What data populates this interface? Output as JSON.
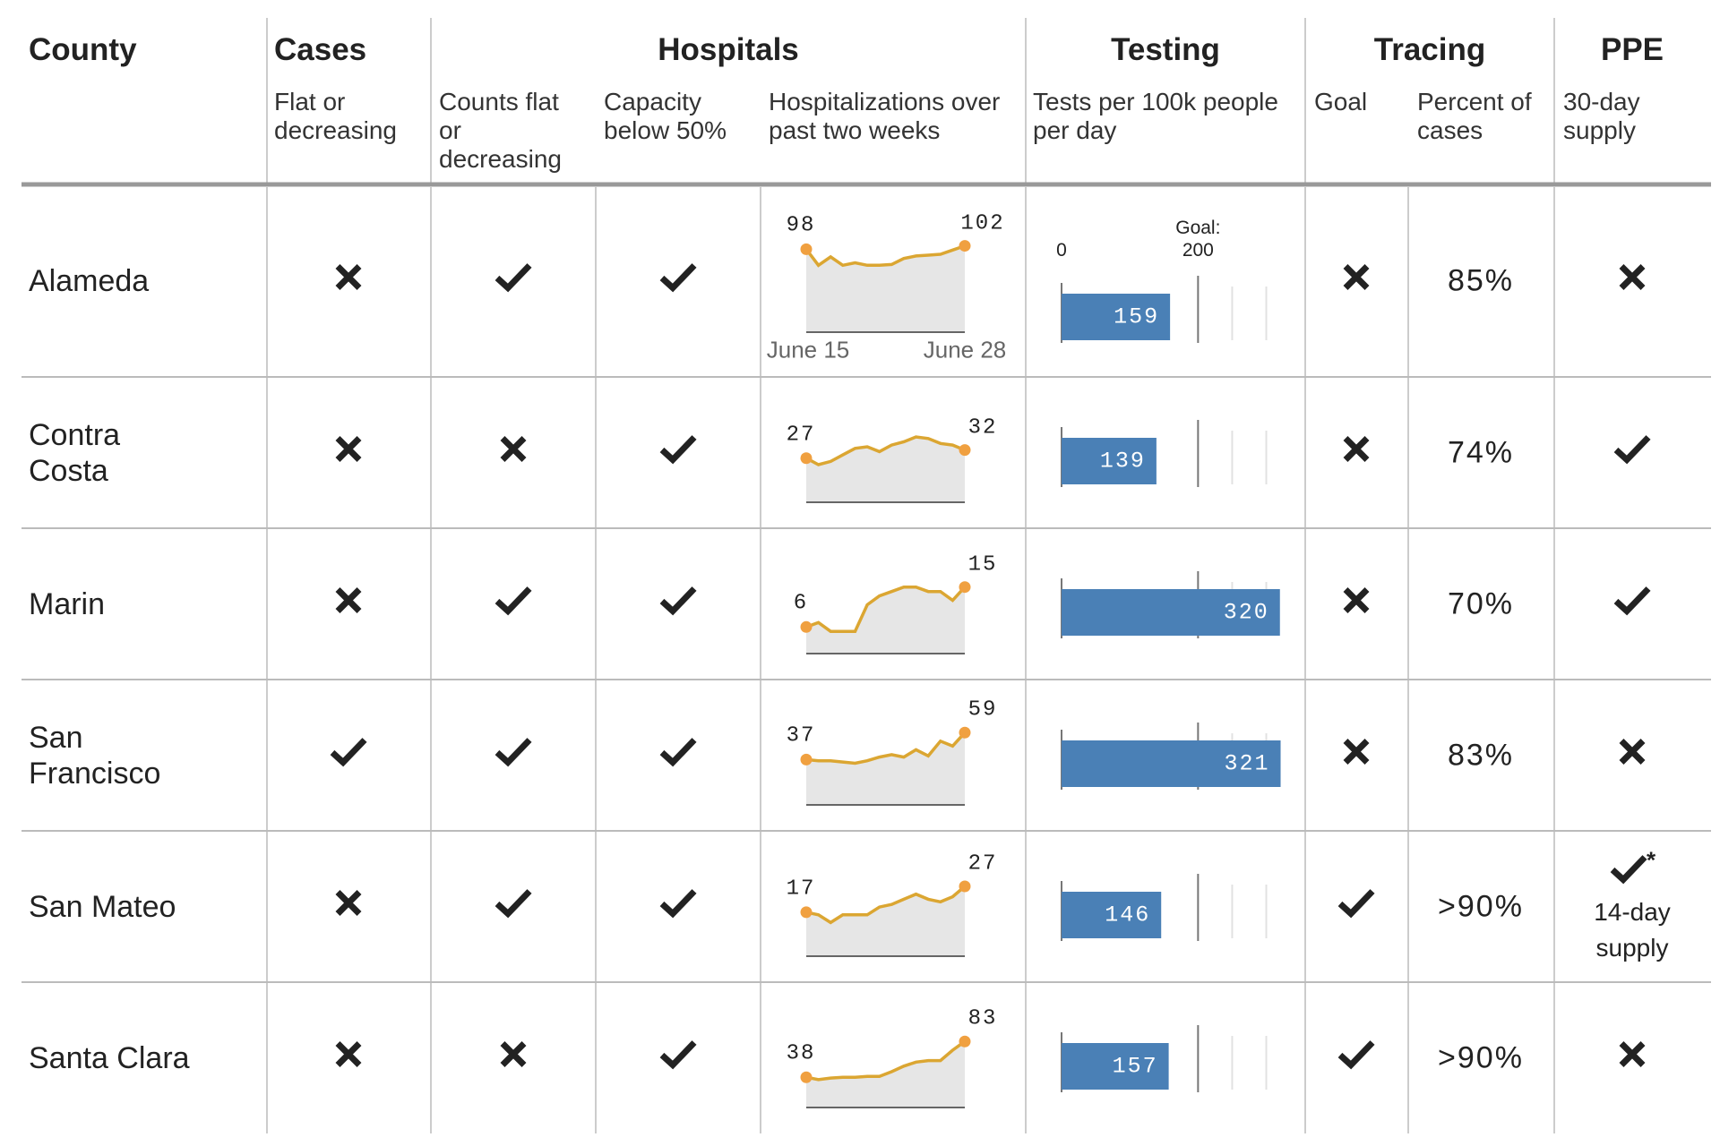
{
  "header": {
    "groups": [
      "County",
      "Cases",
      "Hospitals",
      "Testing",
      "Tracing",
      "PPE"
    ],
    "subheads": [
      "Flat or decreasing",
      "Counts flat or decreasing",
      "Capacity below 50%",
      "Hospitalizations over past two weeks",
      "Tests per 100k people per day",
      "Goal",
      "Percent of cases",
      "30-day supply"
    ]
  },
  "sparkline_dates": [
    "June 15",
    "June 28"
  ],
  "testing_axis": {
    "xlim": [
      0,
      340
    ],
    "xticks": [
      0,
      200
    ],
    "goal_label": "Goal:",
    "minor_grid": [
      250,
      300
    ]
  },
  "rows": [
    {
      "county": "Alameda",
      "cases_flat": false,
      "hosp_counts_flat": true,
      "capacity_below_50": true,
      "hospitalizations": {
        "values": [
          98,
          79,
          89,
          79,
          82,
          79,
          79,
          80,
          87,
          90,
          91,
          92,
          97,
          102
        ],
        "ylim": [
          0,
          110
        ]
      },
      "tests": 159,
      "tracing_goal": false,
      "tracing_percent": "85%",
      "ppe_supply": false
    },
    {
      "county": "Contra Costa",
      "cases_flat": false,
      "hosp_counts_flat": false,
      "capacity_below_50": true,
      "hospitalizations": {
        "values": [
          27,
          23,
          25,
          29,
          33,
          34,
          31,
          35,
          37,
          40,
          39,
          36,
          35,
          32
        ],
        "ylim": [
          0,
          57
        ]
      },
      "tests": 139,
      "tracing_goal": false,
      "tracing_percent": "74%",
      "ppe_supply": true
    },
    {
      "county": "Marin",
      "cases_flat": false,
      "hosp_counts_flat": true,
      "capacity_below_50": true,
      "hospitalizations": {
        "values": [
          6,
          7,
          5,
          5,
          5,
          11,
          13,
          14,
          15,
          15,
          14,
          14,
          12,
          15
        ],
        "ylim": [
          0,
          21
        ]
      },
      "tests": 320,
      "tracing_goal": false,
      "tracing_percent": "70%",
      "ppe_supply": true
    },
    {
      "county": "San Francisco",
      "cases_flat": true,
      "hosp_counts_flat": true,
      "capacity_below_50": true,
      "hospitalizations": {
        "values": [
          37,
          36,
          36,
          35,
          34,
          36,
          39,
          41,
          39,
          45,
          40,
          52,
          48,
          59
        ],
        "ylim": [
          0,
          76
        ]
      },
      "tests": 321,
      "tracing_goal": false,
      "tracing_percent": "83%",
      "ppe_supply": false
    },
    {
      "county": "San Mateo",
      "cases_flat": false,
      "hosp_counts_flat": true,
      "capacity_below_50": true,
      "hospitalizations": {
        "values": [
          17,
          16,
          13,
          16,
          16,
          16,
          19,
          20,
          22,
          24,
          22,
          21,
          23,
          27
        ],
        "ylim": [
          0,
          36
        ]
      },
      "tests": 146,
      "tracing_goal": true,
      "tracing_percent": ">90%",
      "ppe_supply": true,
      "ppe_marker": "*",
      "ppe_note": "14-day supply"
    },
    {
      "county": "Santa Clara",
      "cases_flat": false,
      "hosp_counts_flat": false,
      "capacity_below_50": true,
      "hospitalizations": {
        "values": [
          38,
          35,
          37,
          38,
          38,
          39,
          39,
          45,
          52,
          57,
          59,
          59,
          72,
          83
        ],
        "ylim": [
          0,
          117
        ]
      },
      "tests": 157,
      "tracing_goal": true,
      "tracing_percent": ">90%",
      "ppe_supply": false
    }
  ]
}
